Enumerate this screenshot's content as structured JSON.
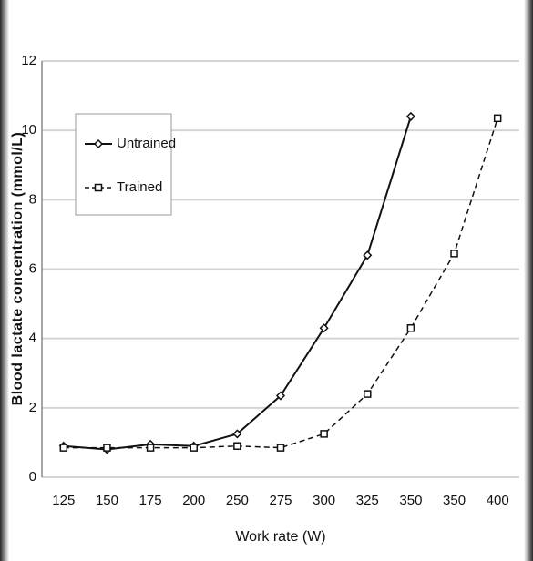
{
  "chart_data": {
    "type": "line",
    "xlabel": "Work rate (W)",
    "ylabel": "Blood lactate concentration (mmol/L)",
    "categories": [
      "125",
      "150",
      "175",
      "200",
      "250",
      "275",
      "300",
      "325",
      "350",
      "350",
      "400"
    ],
    "series": [
      {
        "name": "Untrained",
        "color": "#111111",
        "dash": "solid",
        "marker": "diamond",
        "values": [
          0.9,
          0.8,
          0.95,
          0.9,
          1.25,
          2.35,
          4.3,
          6.4,
          10.4,
          null,
          null
        ]
      },
      {
        "name": "Trained",
        "color": "#111111",
        "dash": "dashed",
        "marker": "square",
        "values": [
          0.85,
          0.85,
          0.85,
          0.85,
          0.9,
          0.85,
          1.25,
          2.4,
          4.3,
          6.45,
          10.35
        ]
      }
    ],
    "ylim": [
      0,
      12
    ],
    "yticks": [
      0,
      2,
      4,
      6,
      8,
      10,
      12
    ],
    "grid": true,
    "legend": "upper left"
  }
}
